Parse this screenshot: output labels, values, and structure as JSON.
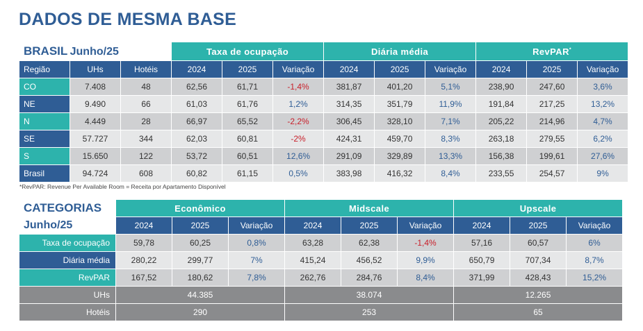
{
  "title": "DADOS DE MESMA BASE",
  "brasil": {
    "heading": "BRASIL",
    "period": "Junho/25",
    "groups": {
      "taxa": "Taxa de ocupação",
      "diaria": "Diária média",
      "revpar": "RevPAR",
      "revpar_mark": "*"
    },
    "col_headers": [
      "Região",
      "UHs",
      "Hotéis",
      "2024",
      "2025",
      "Variação",
      "2024",
      "2025",
      "Variação",
      "2024",
      "2025",
      "Variação"
    ],
    "rows": [
      {
        "regiao": "CO",
        "uhs": "7.408",
        "hoteis": "48",
        "taxa_2024": "62,56",
        "taxa_2025": "61,71",
        "taxa_var": "-1,4%",
        "diaria_2024": "381,87",
        "diaria_2025": "401,20",
        "diaria_var": "5,1%",
        "revpar_2024": "238,90",
        "revpar_2025": "247,60",
        "revpar_var": "3,6%"
      },
      {
        "regiao": "NE",
        "uhs": "9.490",
        "hoteis": "66",
        "taxa_2024": "61,03",
        "taxa_2025": "61,76",
        "taxa_var": "1,2%",
        "diaria_2024": "314,35",
        "diaria_2025": "351,79",
        "diaria_var": "11,9%",
        "revpar_2024": "191,84",
        "revpar_2025": "217,25",
        "revpar_var": "13,2%"
      },
      {
        "regiao": "N",
        "uhs": "4.449",
        "hoteis": "28",
        "taxa_2024": "66,97",
        "taxa_2025": "65,52",
        "taxa_var": "-2,2%",
        "diaria_2024": "306,45",
        "diaria_2025": "328,10",
        "diaria_var": "7,1%",
        "revpar_2024": "205,22",
        "revpar_2025": "214,96",
        "revpar_var": "4,7%"
      },
      {
        "regiao": "SE",
        "uhs": "57.727",
        "hoteis": "344",
        "taxa_2024": "62,03",
        "taxa_2025": "60,81",
        "taxa_var": "-2%",
        "diaria_2024": "424,31",
        "diaria_2025": "459,70",
        "diaria_var": "8,3%",
        "revpar_2024": "263,18",
        "revpar_2025": "279,55",
        "revpar_var": "6,2%"
      },
      {
        "regiao": "S",
        "uhs": "15.650",
        "hoteis": "122",
        "taxa_2024": "53,72",
        "taxa_2025": "60,51",
        "taxa_var": "12,6%",
        "diaria_2024": "291,09",
        "diaria_2025": "329,89",
        "diaria_var": "13,3%",
        "revpar_2024": "156,38",
        "revpar_2025": "199,61",
        "revpar_var": "27,6%"
      },
      {
        "regiao": "Brasil",
        "uhs": "94.724",
        "hoteis": "608",
        "taxa_2024": "60,82",
        "taxa_2025": "61,15",
        "taxa_var": "0,5%",
        "diaria_2024": "383,98",
        "diaria_2025": "416,32",
        "diaria_var": "8,4%",
        "revpar_2024": "233,55",
        "revpar_2025": "254,57",
        "revpar_var": "9%"
      }
    ]
  },
  "footnote": "*RevPAR: Revenue Per Available Room = Receita por Apartamento Disponível",
  "categorias": {
    "heading": "CATEGORIAS",
    "period": "Junho/25",
    "groups": {
      "economico": "Econômico",
      "midscale": "Midscale",
      "upscale": "Upscale"
    },
    "col_headers": [
      "2024",
      "2025",
      "Variação",
      "2024",
      "2025",
      "Variação",
      "2024",
      "2025",
      "Variação"
    ],
    "rows": [
      {
        "label": "Taxa de ocupação",
        "eco_2024": "59,78",
        "eco_2025": "60,25",
        "eco_var": "0,8%",
        "mid_2024": "63,28",
        "mid_2025": "62,38",
        "mid_var": "-1,4%",
        "up_2024": "57,16",
        "up_2025": "60,57",
        "up_var": "6%"
      },
      {
        "label": "Diária média",
        "eco_2024": "280,22",
        "eco_2025": "299,77",
        "eco_var": "7%",
        "mid_2024": "415,24",
        "mid_2025": "456,52",
        "mid_var": "9,9%",
        "up_2024": "650,79",
        "up_2025": "707,34",
        "up_var": "8,7%"
      },
      {
        "label": "RevPAR",
        "eco_2024": "167,52",
        "eco_2025": "180,62",
        "eco_var": "7,8%",
        "mid_2024": "262,76",
        "mid_2025": "284,76",
        "mid_var": "8,4%",
        "up_2024": "371,99",
        "up_2025": "428,43",
        "up_var": "15,2%"
      }
    ],
    "uhs": {
      "label": "UHs",
      "economico": "44.385",
      "midscale": "38.074",
      "upscale": "12.265"
    },
    "hoteis": {
      "label": "Hotéis",
      "economico": "290",
      "midscale": "253",
      "upscale": "65"
    }
  }
}
